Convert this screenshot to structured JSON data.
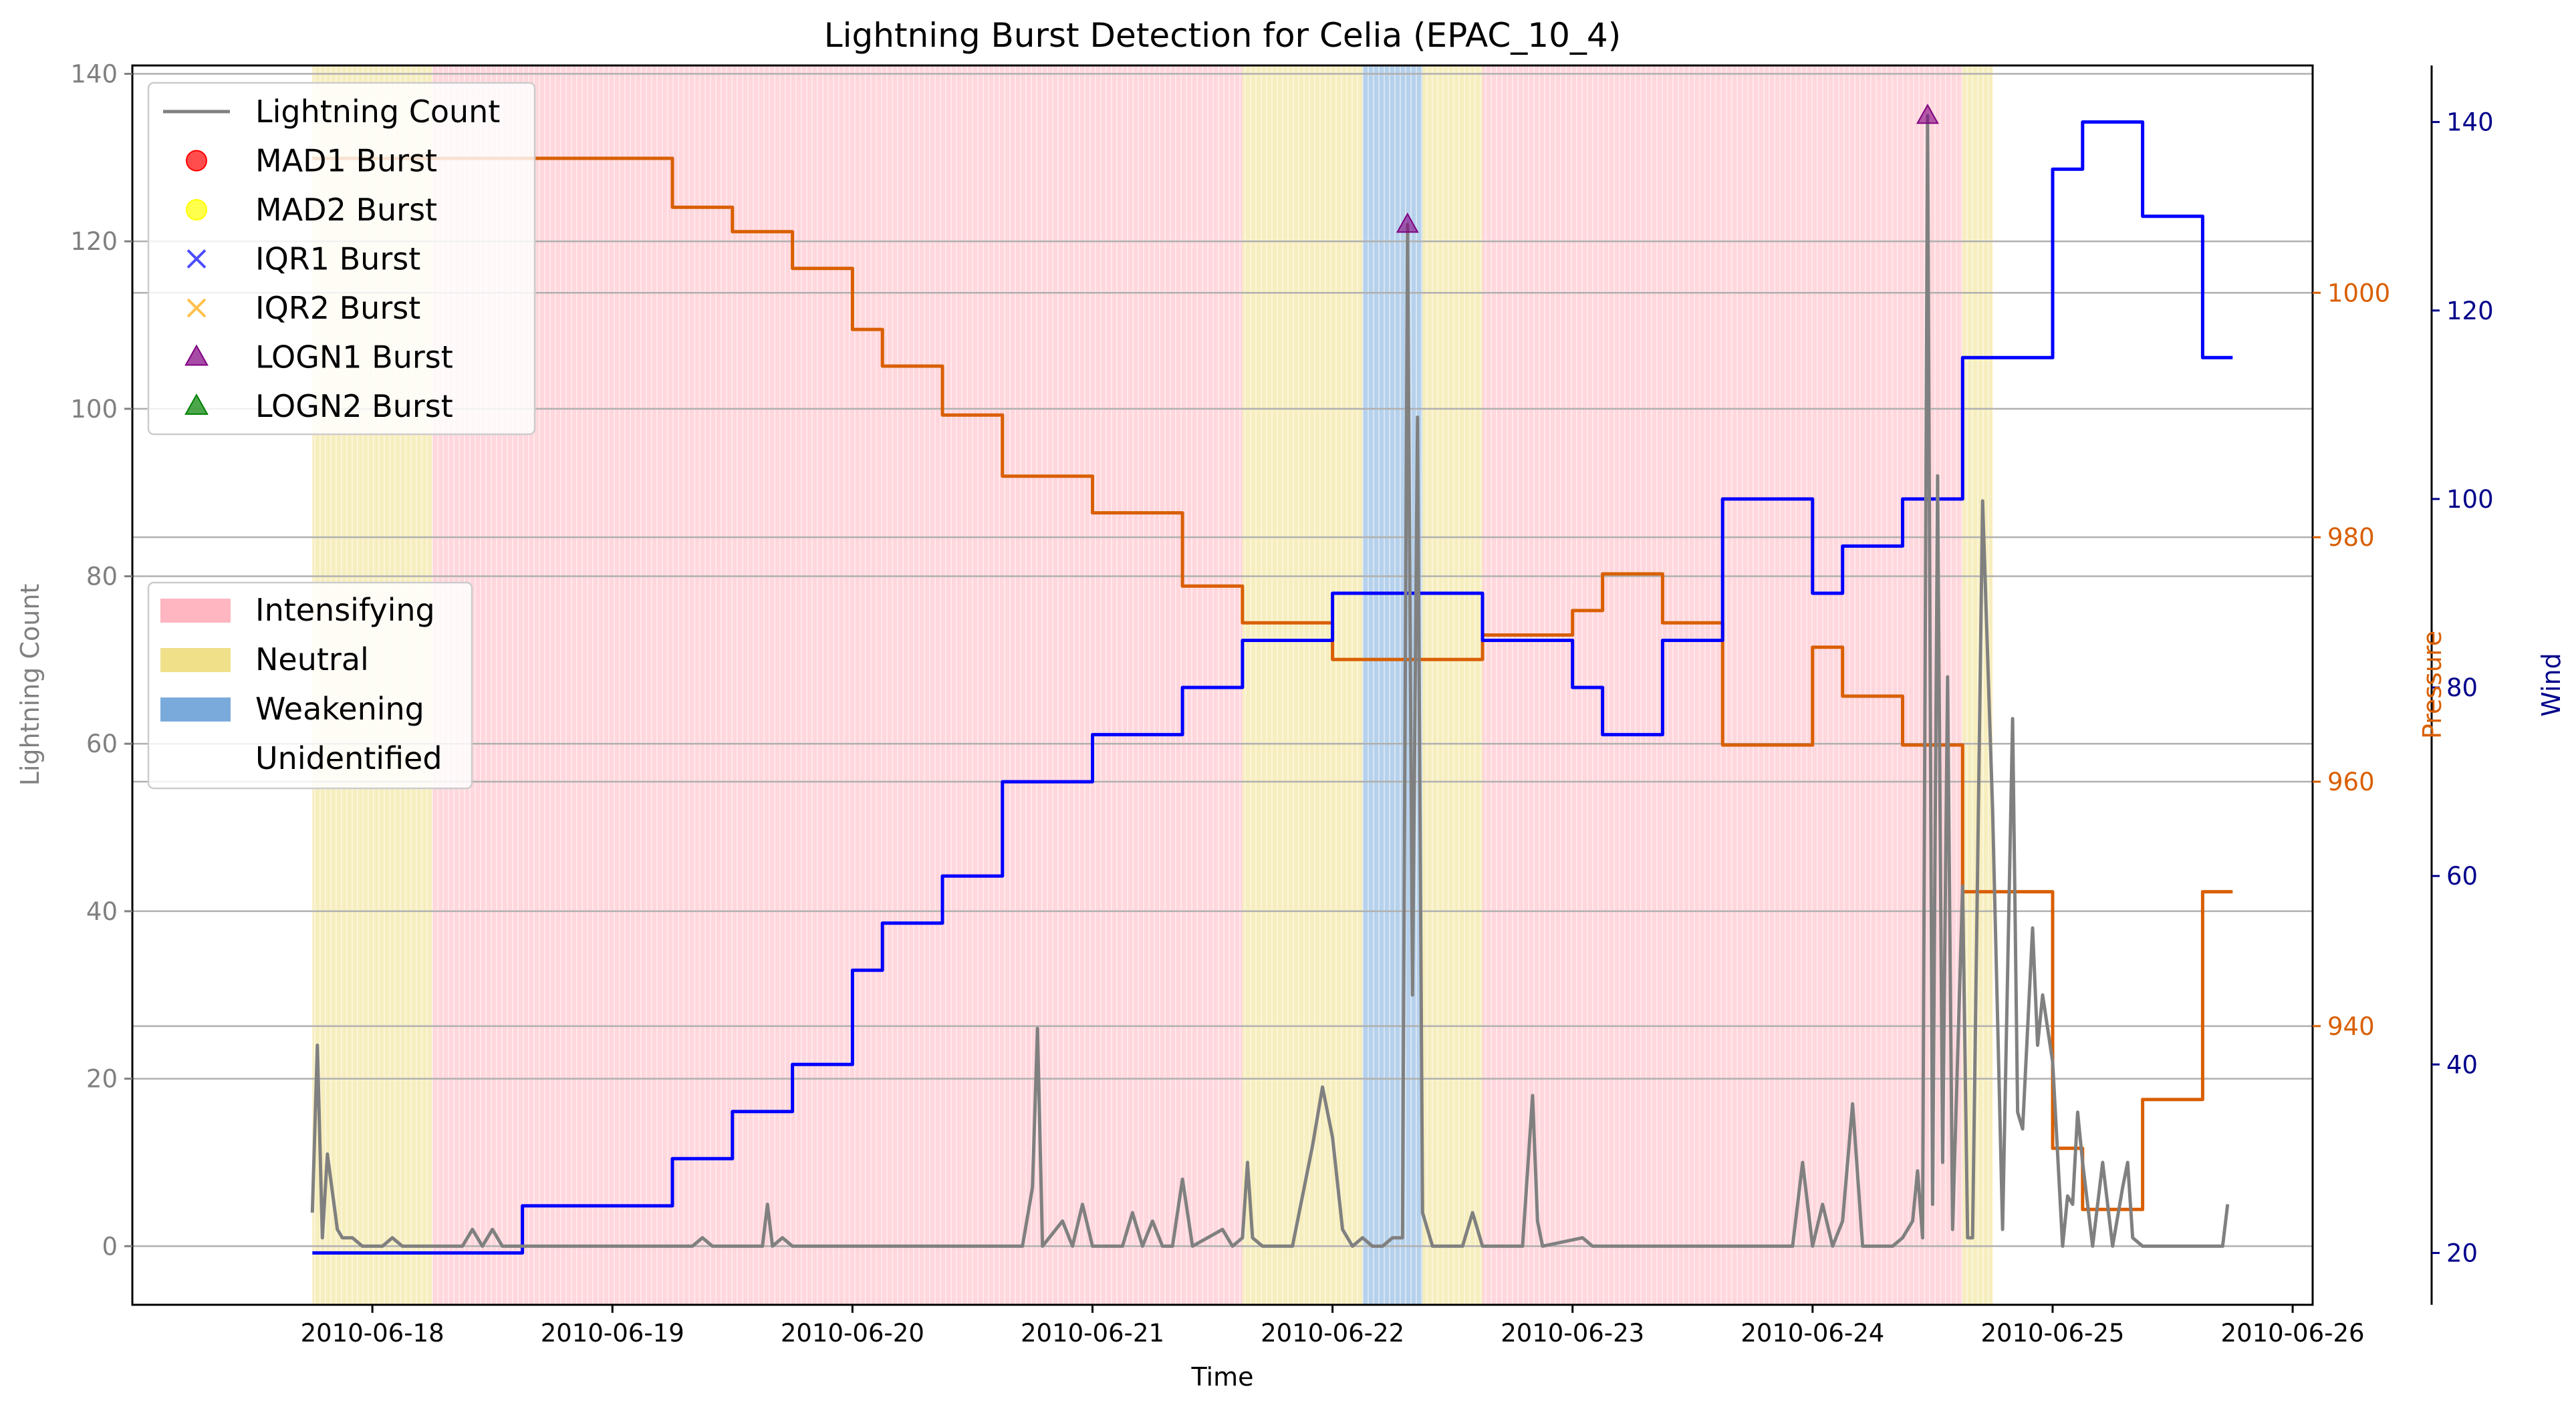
{
  "chart_data": {
    "type": "line",
    "title": "Lightning Burst Detection for Celia (EPAC_10_4)",
    "xlabel": "Time",
    "ylabel": "Lightning Count",
    "y2label": "Pressure",
    "y3label": "Wind",
    "xlim": [
      "2010-06-17 00:00",
      "2010-06-26 02:00"
    ],
    "ylim": [
      -7,
      141
    ],
    "y2lim": [
      917.2,
      1018.6
    ],
    "y3lim": [
      14.5,
      146
    ],
    "x_ticks": [
      "2010-06-18",
      "2010-06-19",
      "2010-06-20",
      "2010-06-21",
      "2010-06-22",
      "2010-06-23",
      "2010-06-24",
      "2010-06-25",
      "2010-06-26"
    ],
    "y_ticks": [
      0,
      20,
      40,
      60,
      80,
      100,
      120,
      140
    ],
    "y2_ticks": [
      940,
      960,
      980,
      1000
    ],
    "y3_ticks": [
      20,
      40,
      60,
      80,
      100,
      120,
      140
    ],
    "grid": "horizontal",
    "legend_markers": {
      "placement": "upper-left",
      "items": [
        {
          "label": "Lightning Count",
          "kind": "line",
          "color": "#808080"
        },
        {
          "label": "MAD1 Burst",
          "kind": "circle",
          "color": "#ff0000"
        },
        {
          "label": "MAD2 Burst",
          "kind": "circle",
          "color": "#ffff00"
        },
        {
          "label": "IQR1 Burst",
          "kind": "x",
          "color": "#0000ff"
        },
        {
          "label": "IQR2 Burst",
          "kind": "x",
          "color": "#ffa500"
        },
        {
          "label": "LOGN1 Burst",
          "kind": "triangle",
          "color": "#800080"
        },
        {
          "label": "LOGN2 Burst",
          "kind": "triangle",
          "color": "#008000"
        }
      ]
    },
    "legend_phases": {
      "placement": "center-left",
      "items": [
        {
          "label": "Intensifying",
          "color": "#ffb6c1"
        },
        {
          "label": "Neutral",
          "color": "#f0e08a"
        },
        {
          "label": "Weakening",
          "color": "#7aaadc"
        },
        {
          "label": "Unidentified",
          "color": "#ffffff"
        }
      ]
    },
    "phases": [
      {
        "phase": "Neutral",
        "start": "2010-06-17 18:00",
        "end": "2010-06-18 06:00"
      },
      {
        "phase": "Intensifying",
        "start": "2010-06-18 06:00",
        "end": "2010-06-21 15:00"
      },
      {
        "phase": "Neutral",
        "start": "2010-06-21 15:00",
        "end": "2010-06-22 03:00"
      },
      {
        "phase": "Weakening",
        "start": "2010-06-22 03:00",
        "end": "2010-06-22 09:00"
      },
      {
        "phase": "Neutral",
        "start": "2010-06-22 09:00",
        "end": "2010-06-22 15:00"
      },
      {
        "phase": "Intensifying",
        "start": "2010-06-22 15:00",
        "end": "2010-06-24 15:00"
      },
      {
        "phase": "Neutral",
        "start": "2010-06-24 15:00",
        "end": "2010-06-24 18:00"
      }
    ],
    "series": [
      {
        "name": "Lightning Count",
        "axis": "left",
        "color": "#808080",
        "points": [
          [
            "2010-06-17 18:00",
            4
          ],
          [
            "2010-06-17 18:30",
            24
          ],
          [
            "2010-06-17 19:00",
            1
          ],
          [
            "2010-06-17 19:30",
            11
          ],
          [
            "2010-06-17 20:30",
            2
          ],
          [
            "2010-06-17 21:00",
            1
          ],
          [
            "2010-06-17 22:00",
            1
          ],
          [
            "2010-06-17 23:00",
            0
          ],
          [
            "2010-06-18 01:00",
            0
          ],
          [
            "2010-06-18 02:00",
            1
          ],
          [
            "2010-06-18 03:00",
            0
          ],
          [
            "2010-06-18 09:00",
            0
          ],
          [
            "2010-06-18 10:00",
            2
          ],
          [
            "2010-06-18 11:00",
            0
          ],
          [
            "2010-06-18 12:00",
            2
          ],
          [
            "2010-06-18 13:00",
            0
          ],
          [
            "2010-06-19 08:00",
            0
          ],
          [
            "2010-06-19 09:00",
            1
          ],
          [
            "2010-06-19 10:00",
            0
          ],
          [
            "2010-06-19 15:00",
            0
          ],
          [
            "2010-06-19 15:30",
            5
          ],
          [
            "2010-06-19 16:00",
            0
          ],
          [
            "2010-06-19 17:00",
            1
          ],
          [
            "2010-06-19 18:00",
            0
          ],
          [
            "2010-06-20 17:00",
            0
          ],
          [
            "2010-06-20 18:00",
            7
          ],
          [
            "2010-06-20 18:30",
            26
          ],
          [
            "2010-06-20 19:00",
            0
          ],
          [
            "2010-06-20 21:00",
            3
          ],
          [
            "2010-06-20 22:00",
            0
          ],
          [
            "2010-06-20 23:00",
            5
          ],
          [
            "2010-06-21 00:00",
            0
          ],
          [
            "2010-06-21 03:00",
            0
          ],
          [
            "2010-06-21 04:00",
            4
          ],
          [
            "2010-06-21 05:00",
            0
          ],
          [
            "2010-06-21 06:00",
            3
          ],
          [
            "2010-06-21 07:00",
            0
          ],
          [
            "2010-06-21 08:00",
            0
          ],
          [
            "2010-06-21 09:00",
            8
          ],
          [
            "2010-06-21 10:00",
            0
          ],
          [
            "2010-06-21 13:00",
            2
          ],
          [
            "2010-06-21 14:00",
            0
          ],
          [
            "2010-06-21 15:00",
            1
          ],
          [
            "2010-06-21 15:30",
            10
          ],
          [
            "2010-06-21 16:00",
            1
          ],
          [
            "2010-06-21 17:00",
            0
          ],
          [
            "2010-06-21 20:00",
            0
          ],
          [
            "2010-06-21 22:00",
            12
          ],
          [
            "2010-06-21 23:00",
            19
          ],
          [
            "2010-06-22 00:00",
            13
          ],
          [
            "2010-06-22 01:00",
            2
          ],
          [
            "2010-06-22 02:00",
            0
          ],
          [
            "2010-06-22 03:00",
            1
          ],
          [
            "2010-06-22 04:00",
            0
          ],
          [
            "2010-06-22 05:00",
            0
          ],
          [
            "2010-06-22 06:00",
            1
          ],
          [
            "2010-06-22 07:00",
            1
          ],
          [
            "2010-06-22 07:30",
            122
          ],
          [
            "2010-06-22 08:00",
            30
          ],
          [
            "2010-06-22 08:30",
            99
          ],
          [
            "2010-06-22 09:00",
            4
          ],
          [
            "2010-06-22 10:00",
            0
          ],
          [
            "2010-06-22 13:00",
            0
          ],
          [
            "2010-06-22 14:00",
            4
          ],
          [
            "2010-06-22 15:00",
            0
          ],
          [
            "2010-06-22 19:00",
            0
          ],
          [
            "2010-06-22 20:00",
            18
          ],
          [
            "2010-06-22 20:30",
            3
          ],
          [
            "2010-06-22 21:00",
            0
          ],
          [
            "2010-06-23 01:00",
            1
          ],
          [
            "2010-06-23 02:00",
            0
          ],
          [
            "2010-06-23 22:00",
            0
          ],
          [
            "2010-06-23 23:00",
            10
          ],
          [
            "2010-06-24 00:00",
            0
          ],
          [
            "2010-06-24 01:00",
            5
          ],
          [
            "2010-06-24 02:00",
            0
          ],
          [
            "2010-06-24 03:00",
            3
          ],
          [
            "2010-06-24 04:00",
            17
          ],
          [
            "2010-06-24 05:00",
            0
          ],
          [
            "2010-06-24 08:00",
            0
          ],
          [
            "2010-06-24 09:00",
            1
          ],
          [
            "2010-06-24 10:00",
            3
          ],
          [
            "2010-06-24 10:30",
            9
          ],
          [
            "2010-06-24 11:00",
            1
          ],
          [
            "2010-06-24 11:30",
            135
          ],
          [
            "2010-06-24 12:00",
            5
          ],
          [
            "2010-06-24 12:30",
            92
          ],
          [
            "2010-06-24 13:00",
            10
          ],
          [
            "2010-06-24 13:30",
            68
          ],
          [
            "2010-06-24 14:00",
            2
          ],
          [
            "2010-06-24 15:00",
            43
          ],
          [
            "2010-06-24 15:30",
            1
          ],
          [
            "2010-06-24 16:00",
            1
          ],
          [
            "2010-06-24 17:00",
            89
          ],
          [
            "2010-06-24 18:00",
            52
          ],
          [
            "2010-06-24 19:00",
            2
          ],
          [
            "2010-06-24 20:00",
            63
          ],
          [
            "2010-06-24 20:30",
            16
          ],
          [
            "2010-06-24 21:00",
            14
          ],
          [
            "2010-06-24 22:00",
            38
          ],
          [
            "2010-06-24 22:30",
            24
          ],
          [
            "2010-06-24 23:00",
            30
          ],
          [
            "2010-06-25 00:00",
            22
          ],
          [
            "2010-06-25 01:00",
            0
          ],
          [
            "2010-06-25 01:30",
            6
          ],
          [
            "2010-06-25 02:00",
            5
          ],
          [
            "2010-06-25 02:30",
            16
          ],
          [
            "2010-06-25 03:00",
            10
          ],
          [
            "2010-06-25 04:00",
            0
          ],
          [
            "2010-06-25 05:00",
            10
          ],
          [
            "2010-06-25 06:00",
            0
          ],
          [
            "2010-06-25 07:00",
            7
          ],
          [
            "2010-06-25 07:30",
            10
          ],
          [
            "2010-06-25 08:00",
            1
          ],
          [
            "2010-06-25 09:00",
            0
          ],
          [
            "2010-06-25 17:00",
            0
          ],
          [
            "2010-06-25 17:30",
            5
          ]
        ]
      },
      {
        "name": "Pressure",
        "axis": "right",
        "color": "#d95f02",
        "points": [
          [
            "2010-06-17 18:00",
            1011
          ],
          [
            "2010-06-19 06:00",
            1011
          ],
          [
            "2010-06-19 06:00",
            1007
          ],
          [
            "2010-06-19 12:00",
            1007
          ],
          [
            "2010-06-19 12:00",
            1005
          ],
          [
            "2010-06-19 18:00",
            1005
          ],
          [
            "2010-06-19 18:00",
            1002
          ],
          [
            "2010-06-20 00:00",
            1002
          ],
          [
            "2010-06-20 00:00",
            997
          ],
          [
            "2010-06-20 03:00",
            997
          ],
          [
            "2010-06-20 03:00",
            994
          ],
          [
            "2010-06-20 09:00",
            994
          ],
          [
            "2010-06-20 09:00",
            990
          ],
          [
            "2010-06-20 15:00",
            990
          ],
          [
            "2010-06-20 15:00",
            985
          ],
          [
            "2010-06-21 00:00",
            985
          ],
          [
            "2010-06-21 00:00",
            982
          ],
          [
            "2010-06-21 09:00",
            982
          ],
          [
            "2010-06-21 09:00",
            976
          ],
          [
            "2010-06-21 15:00",
            976
          ],
          [
            "2010-06-21 15:00",
            973
          ],
          [
            "2010-06-22 00:00",
            973
          ],
          [
            "2010-06-22 00:00",
            970
          ],
          [
            "2010-06-22 15:00",
            970
          ],
          [
            "2010-06-22 15:00",
            972
          ],
          [
            "2010-06-23 00:00",
            972
          ],
          [
            "2010-06-23 00:00",
            974
          ],
          [
            "2010-06-23 03:00",
            974
          ],
          [
            "2010-06-23 03:00",
            977
          ],
          [
            "2010-06-23 09:00",
            977
          ],
          [
            "2010-06-23 09:00",
            973
          ],
          [
            "2010-06-23 15:00",
            973
          ],
          [
            "2010-06-23 15:00",
            963
          ],
          [
            "2010-06-24 00:00",
            963
          ],
          [
            "2010-06-24 00:00",
            971
          ],
          [
            "2010-06-24 03:00",
            971
          ],
          [
            "2010-06-24 03:00",
            967
          ],
          [
            "2010-06-24 09:00",
            967
          ],
          [
            "2010-06-24 09:00",
            963
          ],
          [
            "2010-06-24 15:00",
            963
          ],
          [
            "2010-06-24 15:00",
            951
          ],
          [
            "2010-06-25 00:00",
            951
          ],
          [
            "2010-06-25 00:00",
            930
          ],
          [
            "2010-06-25 03:00",
            930
          ],
          [
            "2010-06-25 03:00",
            925
          ],
          [
            "2010-06-25 09:00",
            925
          ],
          [
            "2010-06-25 09:00",
            934
          ],
          [
            "2010-06-25 15:00",
            934
          ],
          [
            "2010-06-25 15:00",
            951
          ],
          [
            "2010-06-25 18:00",
            951
          ]
        ]
      },
      {
        "name": "Wind",
        "axis": "right-outer",
        "color": "#0000ff",
        "points": [
          [
            "2010-06-17 18:00",
            20
          ],
          [
            "2010-06-18 15:00",
            20
          ],
          [
            "2010-06-18 15:00",
            25
          ],
          [
            "2010-06-19 06:00",
            25
          ],
          [
            "2010-06-19 06:00",
            30
          ],
          [
            "2010-06-19 12:00",
            30
          ],
          [
            "2010-06-19 12:00",
            35
          ],
          [
            "2010-06-19 18:00",
            35
          ],
          [
            "2010-06-19 18:00",
            40
          ],
          [
            "2010-06-20 00:00",
            40
          ],
          [
            "2010-06-20 00:00",
            50
          ],
          [
            "2010-06-20 03:00",
            50
          ],
          [
            "2010-06-20 03:00",
            55
          ],
          [
            "2010-06-20 09:00",
            55
          ],
          [
            "2010-06-20 09:00",
            60
          ],
          [
            "2010-06-20 15:00",
            60
          ],
          [
            "2010-06-20 15:00",
            70
          ],
          [
            "2010-06-21 00:00",
            70
          ],
          [
            "2010-06-21 00:00",
            75
          ],
          [
            "2010-06-21 09:00",
            75
          ],
          [
            "2010-06-21 09:00",
            80
          ],
          [
            "2010-06-21 15:00",
            80
          ],
          [
            "2010-06-21 15:00",
            85
          ],
          [
            "2010-06-22 00:00",
            85
          ],
          [
            "2010-06-22 00:00",
            90
          ],
          [
            "2010-06-22 15:00",
            90
          ],
          [
            "2010-06-22 15:00",
            85
          ],
          [
            "2010-06-23 00:00",
            85
          ],
          [
            "2010-06-23 00:00",
            80
          ],
          [
            "2010-06-23 03:00",
            80
          ],
          [
            "2010-06-23 03:00",
            75
          ],
          [
            "2010-06-23 09:00",
            75
          ],
          [
            "2010-06-23 09:00",
            85
          ],
          [
            "2010-06-23 15:00",
            85
          ],
          [
            "2010-06-23 15:00",
            100
          ],
          [
            "2010-06-24 00:00",
            100
          ],
          [
            "2010-06-24 00:00",
            90
          ],
          [
            "2010-06-24 03:00",
            90
          ],
          [
            "2010-06-24 03:00",
            95
          ],
          [
            "2010-06-24 09:00",
            95
          ],
          [
            "2010-06-24 09:00",
            100
          ],
          [
            "2010-06-24 15:00",
            100
          ],
          [
            "2010-06-24 15:00",
            115
          ],
          [
            "2010-06-25 00:00",
            115
          ],
          [
            "2010-06-25 00:00",
            135
          ],
          [
            "2010-06-25 03:00",
            135
          ],
          [
            "2010-06-25 03:00",
            140
          ],
          [
            "2010-06-25 09:00",
            140
          ],
          [
            "2010-06-25 09:00",
            130
          ],
          [
            "2010-06-25 15:00",
            130
          ],
          [
            "2010-06-25 15:00",
            115
          ],
          [
            "2010-06-25 18:00",
            115
          ]
        ]
      }
    ],
    "bursts": [
      {
        "method": "LOGN1 Burst",
        "time": "2010-06-22 07:30",
        "value": 122
      },
      {
        "method": "LOGN1 Burst",
        "time": "2010-06-24 11:30",
        "value": 135
      }
    ]
  }
}
